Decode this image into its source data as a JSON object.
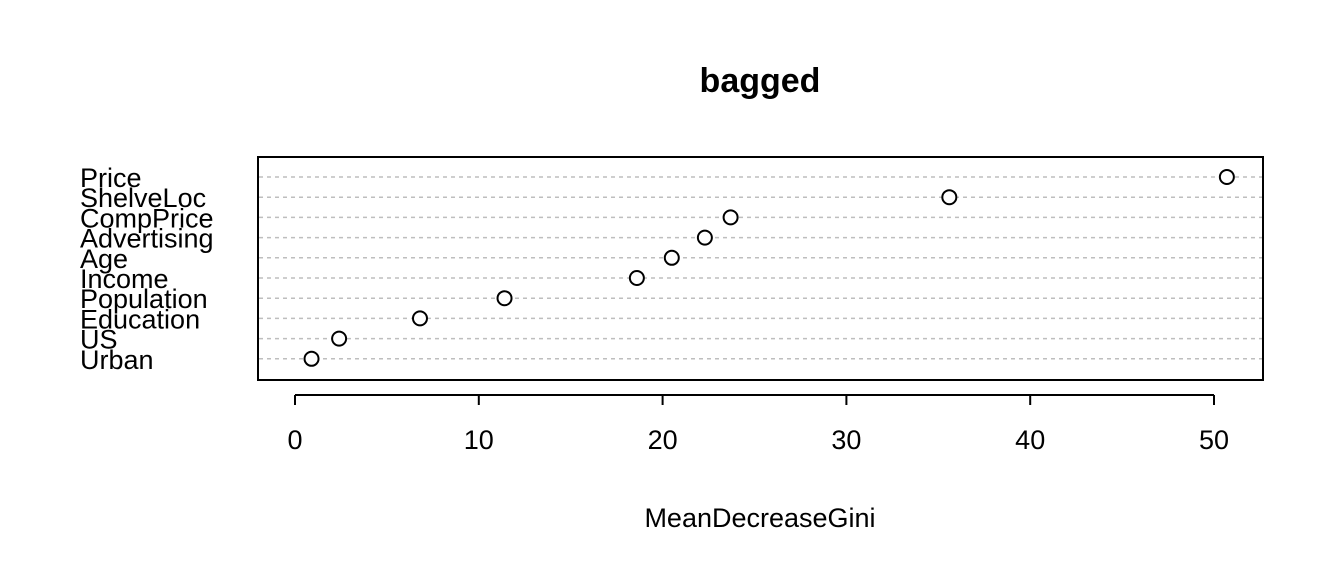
{
  "chart_data": {
    "type": "scatter",
    "title": "bagged",
    "xlabel": "MeanDecreaseGini",
    "ylabel": "",
    "categories": [
      "Price",
      "ShelveLoc",
      "CompPrice",
      "Advertising",
      "Age",
      "Income",
      "Population",
      "Education",
      "US",
      "Urban"
    ],
    "values": [
      50.7,
      35.6,
      23.7,
      22.3,
      20.5,
      18.6,
      11.4,
      6.8,
      2.4,
      0.9
    ],
    "xlim": [
      0,
      50
    ],
    "xticks": [
      0,
      10,
      20,
      30,
      40,
      50
    ],
    "grid": "horizontal dotted",
    "marker": "open-circle",
    "colors": {
      "axis": "#000000",
      "grid": "#bebebe",
      "marker": "#000000"
    }
  }
}
